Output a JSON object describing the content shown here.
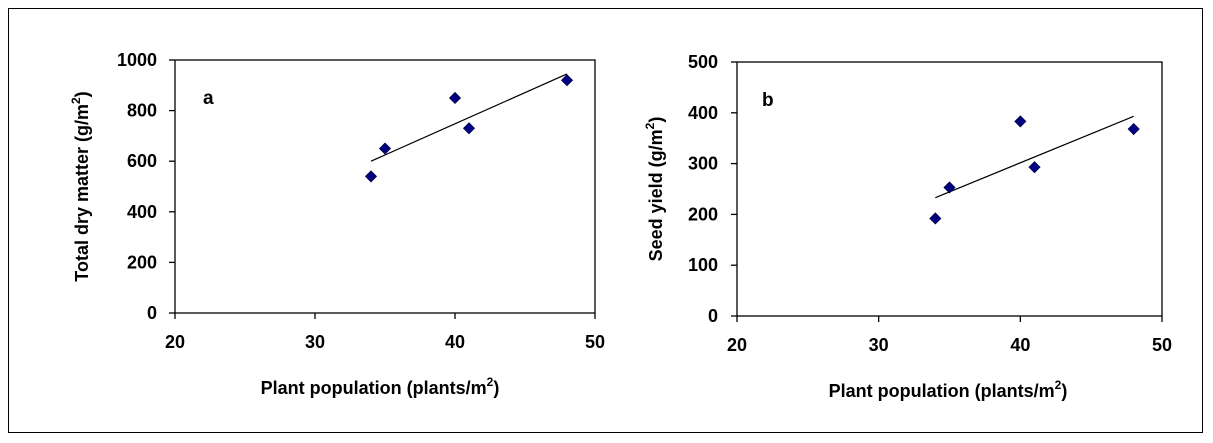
{
  "chart_data": [
    {
      "type": "scatter",
      "panel_label": "a",
      "xlabel": "Plant population (plants/m",
      "xlabel_sup": "2",
      "xlabel_end": ")",
      "ylabel": "Total dry matter (g/m",
      "ylabel_sup": "2",
      "ylabel_end": ")",
      "xlim": [
        20,
        50
      ],
      "ylim": [
        0,
        1000
      ],
      "xticks": [
        20,
        30,
        40,
        50
      ],
      "yticks": [
        0,
        200,
        400,
        600,
        800,
        1000
      ],
      "marker_color": "#000080",
      "points": [
        {
          "x": 34,
          "y": 540
        },
        {
          "x": 35,
          "y": 650
        },
        {
          "x": 40,
          "y": 850
        },
        {
          "x": 41,
          "y": 730
        },
        {
          "x": 48,
          "y": 920
        }
      ],
      "trendline": [
        {
          "x": 34,
          "y": 600
        },
        {
          "x": 48,
          "y": 945
        }
      ]
    },
    {
      "type": "scatter",
      "panel_label": "b",
      "xlabel": "Plant population (plants/m",
      "xlabel_sup": "2",
      "xlabel_end": ")",
      "ylabel": "Seed yield (g/m",
      "ylabel_sup": "2",
      "ylabel_end": ")",
      "xlim": [
        20,
        50
      ],
      "ylim": [
        0,
        500
      ],
      "xticks": [
        20,
        30,
        40,
        50
      ],
      "yticks": [
        0,
        100,
        200,
        300,
        400,
        500
      ],
      "marker_color": "#000080",
      "points": [
        {
          "x": 34,
          "y": 192
        },
        {
          "x": 35,
          "y": 253
        },
        {
          "x": 40,
          "y": 383
        },
        {
          "x": 41,
          "y": 293
        },
        {
          "x": 48,
          "y": 368
        }
      ],
      "trendline": [
        {
          "x": 34,
          "y": 233
        },
        {
          "x": 48,
          "y": 393
        }
      ]
    }
  ]
}
